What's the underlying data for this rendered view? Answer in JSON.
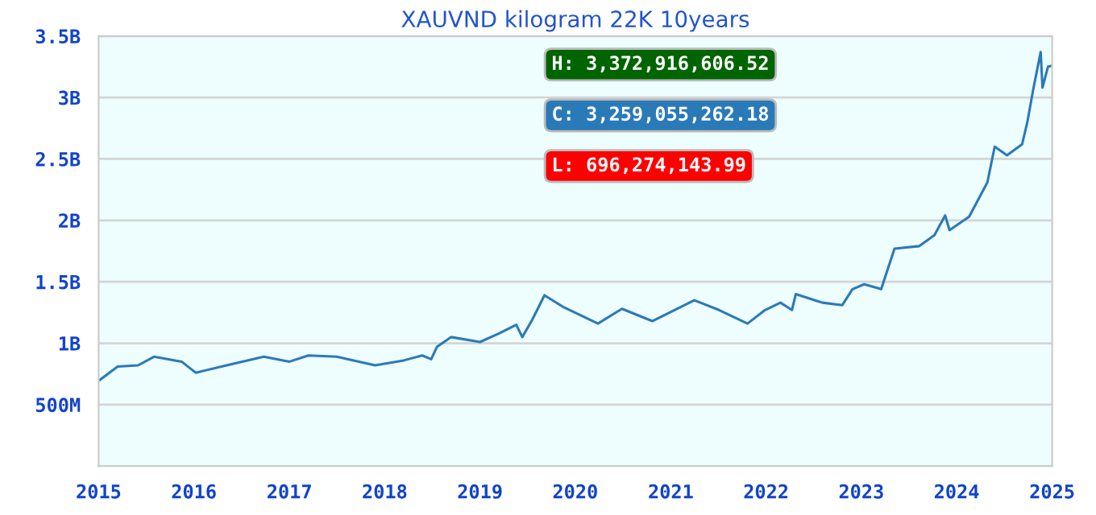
{
  "chart_data": {
    "type": "line",
    "title": "XAUVND kilogram 22K 10years",
    "x": [
      "2015-01-05",
      "2015-03-15",
      "2015-06-01",
      "2015-08-01",
      "2015-11-15",
      "2016-01-08",
      "2016-05-25",
      "2016-09-25",
      "2017-01-01",
      "2017-03-15",
      "2017-07-01",
      "2017-11-25",
      "2018-03-15",
      "2018-05-25",
      "2018-06-28",
      "2018-07-20",
      "2018-09-12",
      "2019-01-01",
      "2019-03-15",
      "2019-05-20",
      "2019-06-12",
      "2019-07-20",
      "2019-09-05",
      "2019-11-20",
      "2020-03-28",
      "2020-06-28",
      "2020-10-22",
      "2021-04-01",
      "2021-07-05",
      "2021-10-22",
      "2021-12-28",
      "2022-02-25",
      "2022-04-10",
      "2022-04-25",
      "2022-08-05",
      "2022-10-20",
      "2022-11-28",
      "2023-01-12",
      "2023-03-18",
      "2023-05-08",
      "2023-08-10",
      "2023-10-08",
      "2023-11-18",
      "2023-12-05",
      "2024-02-18",
      "2024-04-28",
      "2024-05-26",
      "2024-07-12",
      "2024-09-08",
      "2024-09-28",
      "2024-10-20",
      "2024-11-18",
      "2024-11-25",
      "2024-12-16",
      "2025-01-01"
    ],
    "series": [
      {
        "color": "#2a7ab8",
        "values": [
          700000000,
          810000000,
          820000000,
          890000000,
          850000000,
          760000000,
          830000000,
          890000000,
          850000000,
          900000000,
          890000000,
          820000000,
          860000000,
          900000000,
          870000000,
          970000000,
          1050000000,
          1010000000,
          1080000000,
          1150000000,
          1050000000,
          1190000000,
          1390000000,
          1290000000,
          1160000000,
          1280000000,
          1180000000,
          1350000000,
          1270000000,
          1160000000,
          1270000000,
          1330000000,
          1270000000,
          1400000000,
          1330000000,
          1310000000,
          1440000000,
          1480000000,
          1440000000,
          1770000000,
          1790000000,
          1880000000,
          2040000000,
          1920000000,
          2030000000,
          2310000000,
          2600000000,
          2530000000,
          2620000000,
          2800000000,
          3060000000,
          3370000000,
          3080000000,
          3250000000,
          3260000000
        ]
      }
    ],
    "xlim": [
      "2015-01-01",
      "2025-01-01"
    ],
    "xticks": [
      "2015",
      "2016",
      "2017",
      "2018",
      "2019",
      "2020",
      "2021",
      "2022",
      "2023",
      "2024",
      "2025"
    ],
    "ylim": [
      0,
      3500000000
    ],
    "yticks": [
      {
        "value": 500000000,
        "label": "500M"
      },
      {
        "value": 1000000000,
        "label": "1B"
      },
      {
        "value": 1500000000,
        "label": "1.5B"
      },
      {
        "value": 2000000000,
        "label": "2B"
      },
      {
        "value": 2500000000,
        "label": "2.5B"
      },
      {
        "value": 3000000000,
        "label": "3B"
      },
      {
        "value": 3500000000,
        "label": "3.5B"
      }
    ],
    "grid": "y",
    "legend": false,
    "marker": "none",
    "line_style": "solid",
    "annotations": [
      "H: 3,372,916,606.52",
      "C: 3,259,055,262.18",
      "L: 696,274,143.99"
    ]
  }
}
